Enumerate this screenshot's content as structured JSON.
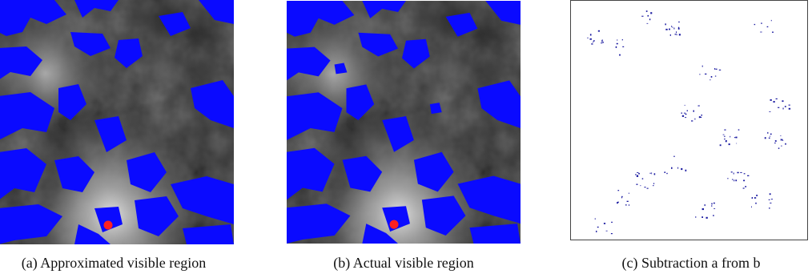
{
  "figure": {
    "panels": [
      {
        "caption": "(a) Approximated visible region",
        "overlay_color": "#0000ff",
        "viewpoint_color": "#ff2020"
      },
      {
        "caption": "(b) Actual visible region",
        "overlay_color": "#0000ff",
        "viewpoint_color": "#ff2020"
      },
      {
        "caption": "(c) Subtraction a from b",
        "overlay_color": "#0000ff"
      }
    ]
  }
}
